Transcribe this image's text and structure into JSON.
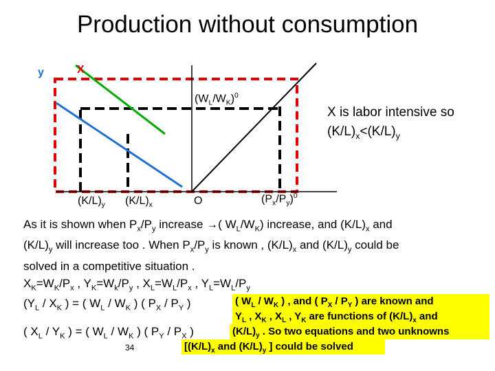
{
  "title": "Production without consumption",
  "diagram": {
    "label_y": "y",
    "label_x": "X",
    "wage_ratio": {
      "base": "(W",
      "sub1": "L",
      "mid": "/W",
      "sub2": "K",
      "close": ")",
      "sup": "0"
    },
    "kl_y": {
      "base": "(K/L)",
      "sub": "y"
    },
    "kl_x": {
      "base": "(K/L)",
      "sub": "x"
    },
    "origin": "O",
    "price_ratio": {
      "p1": "(P",
      "s1": "x",
      "p2": "/P",
      "s2": "y",
      "close": ")",
      "sup": "0"
    },
    "colors": {
      "x_line": "#00aa00",
      "y_line": "#1f6fd1",
      "dashed_red": "#e00000"
    }
  },
  "side_note": {
    "line1": "X is labor intensive so",
    "line2": {
      "a": "(K/L)",
      "s1": "x",
      "b": "<(K/L)",
      "s2": "y"
    }
  },
  "paragraph": {
    "line1": {
      "a": "As it is shown when P",
      "s1": "x",
      "b": "/P",
      "s2": "y",
      "c": " increase  →( W",
      "s3": "L",
      "d": "/W",
      "s4": "K",
      "e": ") increase, and  (K/L)",
      "s5": "x",
      "f": " and"
    },
    "line2": {
      "a": "(K/L)",
      "s1": "y",
      "b": "  will increase too . When P",
      "s2": "x",
      "c": "/P",
      "s3": "y",
      "d": " is known , (K/L)",
      "s4": "x",
      "e": " and (K/L)",
      "s5": "y",
      "f": "  could be"
    },
    "line3": "solved in a competitive situation ."
  },
  "eq1": {
    "a": "X",
    "s1": "K",
    "b": "=W",
    "s2": "K",
    "c": "/P",
    "s3": "x",
    "d": " , Y",
    "s4": "K",
    "e": "=W",
    "s5": "k",
    "f": "/P",
    "s6": "y",
    "g": " , X",
    "s7": "L",
    "h": "=W",
    "s8": "L",
    "i": "/P",
    "s9": "x",
    "j": " , Y",
    "s10": "L",
    "k": "=W",
    "s11": "L",
    "l": "/P",
    "s12": "y"
  },
  "eq2": {
    "a": "(Y",
    "s1": "L",
    "b": " / X",
    "s2": "K",
    "c": "  ) = ( W",
    "s3": "L",
    "d": "  / W",
    "s4": "K",
    "e": " ) ( P",
    "s5": "X",
    "f": " / P",
    "s6": "Y",
    "g": "  )"
  },
  "eq3": {
    "a": "( X",
    "s1": "L",
    "b": " / Y",
    "s2": "K",
    "c": "  ) = ( W",
    "s3": "L",
    "d": "  / W",
    "s4": "K",
    "e": " ) ( P",
    "s5": "Y",
    "f": " / P",
    "s6": "X",
    "g": "  )"
  },
  "highlight": {
    "line1": {
      "a": "( W",
      "s1": "L",
      "b": " / W",
      "s2": "K",
      "c": " ) , and ( P",
      "s3": "X",
      "d": " / P",
      "s4": "Y",
      "e": " ) are known and"
    },
    "line2": {
      "a": "Y",
      "s1": "L",
      "b": " , X",
      "s2": "K",
      "c": " , X",
      "s3": "L",
      "d": " , Y",
      "s4": "K",
      "e": "  are functions of   (K/L)",
      "s5": "x",
      "f": "  and"
    },
    "line3": {
      "a": "(K/L)",
      "s1": "y",
      "b": "  . So two equations and two unknowns"
    },
    "line4": {
      "a": "[(K/L)",
      "s1": "x",
      "b": "  and (K/L)",
      "s2": "y",
      "c": " ]  could be solved"
    }
  },
  "page_number": "34"
}
